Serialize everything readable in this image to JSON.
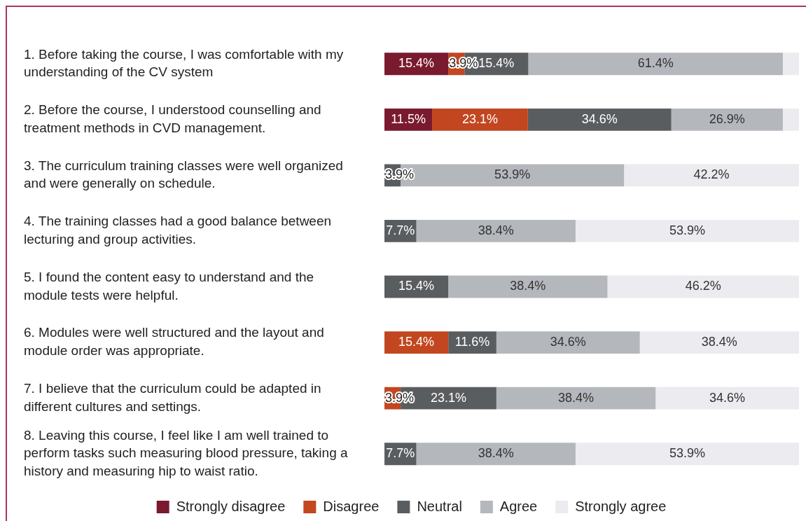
{
  "chart_data": {
    "type": "bar",
    "orientation": "horizontal",
    "stacked": true,
    "legend": "bottom",
    "grid": false,
    "tick_labels": "y",
    "xlim": [
      0,
      100
    ],
    "categories": [
      "1. Before taking the course, I was comfortable with my understanding of the CV system",
      "2. Before the course, I understood counselling and treatment methods in CVD management.",
      "3. The curriculum training classes were well organized and were generally on schedule.",
      "4. The training classes had a good balance between lecturing and group activities.",
      "5. I found the content easy to understand and the module tests were helpful.",
      "6. Modules were well structured and the layout and module order was appropriate.",
      "7. I believe that the curriculum could be adapted in different cultures and settings.",
      "8. Leaving this course, I feel like I am well trained to perform tasks such measuring blood pressure, taking a history and measuring hip to waist ratio."
    ],
    "series": [
      {
        "name": "Strongly disagree",
        "color": "#7a1a2e",
        "values": [
          15.4,
          11.5,
          null,
          null,
          null,
          null,
          null,
          null
        ],
        "value_labels": [
          "15.4%",
          "11.5%",
          null,
          null,
          null,
          null,
          null,
          null
        ]
      },
      {
        "name": "Disagree",
        "color": "#c2461f",
        "values": [
          3.9,
          23.1,
          null,
          null,
          null,
          15.4,
          3.9,
          null
        ],
        "value_labels": [
          "3.9%",
          "23.1%",
          null,
          null,
          null,
          "15.4%",
          "3.9%",
          null
        ]
      },
      {
        "name": "Neutral",
        "color": "#5a5d60",
        "values": [
          15.4,
          34.6,
          3.9,
          7.7,
          15.4,
          11.6,
          23.1,
          7.7
        ],
        "value_labels": [
          "15.4%",
          "34.6%",
          "3.9%",
          "7.7%",
          "15.4%",
          "11.6%",
          "23.1%",
          "7.7%"
        ]
      },
      {
        "name": "Agree",
        "color": "#b4b7bc",
        "values": [
          61.4,
          26.9,
          53.9,
          38.4,
          38.4,
          34.6,
          38.4,
          38.4
        ],
        "value_labels": [
          "61.4%",
          "26.9%",
          "53.9%",
          "38.4%",
          "38.4%",
          "34.6%",
          "38.4%",
          "38.4%"
        ]
      },
      {
        "name": "Strongly agree",
        "color": "#ebebf0",
        "values": [
          3.9,
          3.9,
          42.2,
          53.9,
          46.2,
          38.4,
          34.6,
          53.9
        ],
        "value_labels": [
          null,
          null,
          "42.2%",
          "53.9%",
          "46.2%",
          "38.4%",
          "34.6%",
          "53.9%"
        ]
      }
    ]
  }
}
